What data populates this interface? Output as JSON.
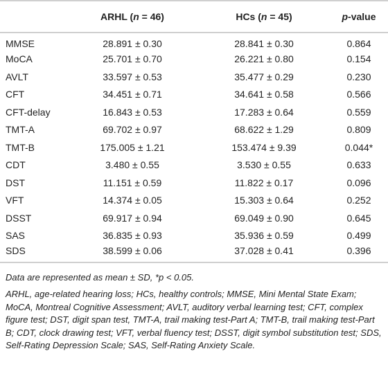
{
  "table": {
    "header": [
      [
        "ARHL (",
        "n",
        " = 46)"
      ],
      [
        "HCs (",
        "n",
        " = 45)"
      ],
      [
        "p",
        "-value"
      ]
    ],
    "rows": [
      [
        "MMSE",
        "28.891 ± 0.30",
        "28.841 ± 0.30",
        "0.864"
      ],
      [
        "MoCA",
        "25.701 ± 0.70",
        "26.221 ± 0.80",
        "0.154"
      ],
      [
        "AVLT",
        "33.597 ± 0.53",
        "35.477 ± 0.29",
        "0.230"
      ],
      [
        "CFT",
        "34.451 ± 0.71",
        "34.641 ± 0.58",
        "0.566"
      ],
      [
        "CFT-delay",
        "16.843 ± 0.53",
        "17.283 ± 0.64",
        "0.559"
      ],
      [
        "TMT-A",
        "69.702 ± 0.97",
        "68.622 ± 1.29",
        "0.809"
      ],
      [
        "TMT-B",
        "175.005 ± 1.21",
        "153.474 ± 9.39",
        "0.044*"
      ],
      [
        "CDT",
        "3.480 ± 0.55",
        "3.530 ± 0.55",
        "0.633"
      ],
      [
        "DST",
        "11.151 ± 0.59",
        "11.822 ± 0.17",
        "0.096"
      ],
      [
        "VFT",
        "14.374 ± 0.05",
        "15.303 ± 0.64",
        "0.252"
      ],
      [
        "DSST",
        "69.917 ± 0.94",
        "69.049 ± 0.90",
        "0.645"
      ],
      [
        "SAS",
        "36.835 ± 0.93",
        "35.936 ± 0.59",
        "0.499"
      ],
      [
        "SDS",
        "38.599 ± 0.06",
        "37.028 ± 0.41",
        "0.396"
      ]
    ]
  },
  "notes": [
    "Data are represented as mean ± SD, *p < 0.05.",
    "ARHL, age-related hearing loss; HCs, healthy controls; MMSE, Mini Mental State Exam; MoCA, Montreal Cognitive Assessment; AVLT, auditory verbal learning test; CFT, complex figure test; DST, digit span test, TMT-A, trail making test-Part A; TMT-B, trail making test-Part B; CDT, clock drawing test; VFT, verbal fluency test; DSST, digit symbol substitution test; SDS, Self-Rating Depression Scale; SAS, Self-Rating Anxiety Scale."
  ]
}
